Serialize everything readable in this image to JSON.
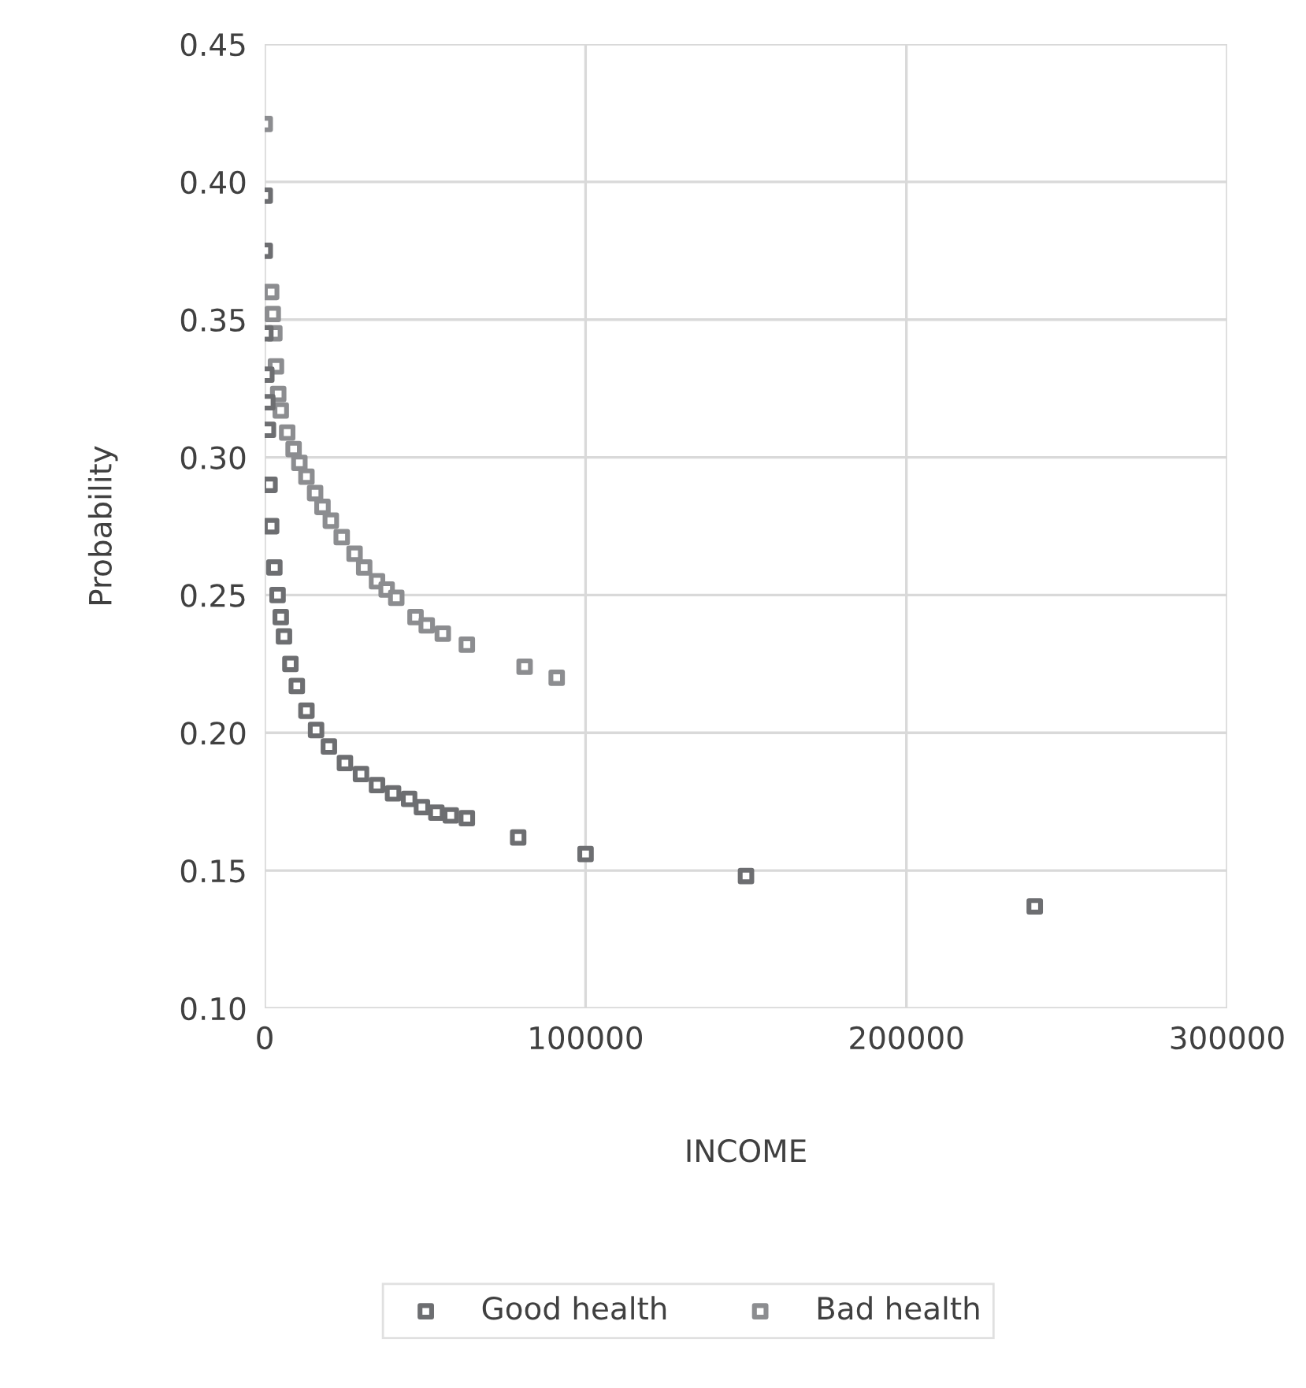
{
  "chart_data": {
    "type": "scatter",
    "xlabel": "INCOME",
    "ylabel": "Probability",
    "xlim": [
      0,
      300000
    ],
    "xticks": [
      0,
      100000,
      200000,
      300000
    ],
    "ylim": [
      0.1,
      0.45
    ],
    "yticks": [
      {
        "value": 0.1,
        "label": "0.10"
      },
      {
        "value": 0.15,
        "label": "0.15"
      },
      {
        "value": 0.2,
        "label": "0.20"
      },
      {
        "value": 0.25,
        "label": "0.25"
      },
      {
        "value": 0.3,
        "label": "0.30"
      },
      {
        "value": 0.35,
        "label": "0.35"
      },
      {
        "value": 0.4,
        "label": "0.40"
      },
      {
        "value": 0.45,
        "label": "0.45"
      }
    ],
    "grid": true,
    "legend": "bottom",
    "marker": "square",
    "series": [
      {
        "name": "Good health",
        "color": "#6d6e71",
        "x": [
          0,
          0,
          200,
          500,
          800,
          1000,
          1500,
          2000,
          3000,
          4000,
          5000,
          6000,
          8000,
          10000,
          13000,
          16000,
          20000,
          25000,
          30000,
          35000,
          40000,
          45000,
          49000,
          53500,
          58000,
          63000,
          79000,
          100000,
          150000,
          240000
        ],
        "values": [
          0.395,
          0.375,
          0.345,
          0.33,
          0.32,
          0.31,
          0.29,
          0.275,
          0.26,
          0.25,
          0.242,
          0.235,
          0.225,
          0.217,
          0.208,
          0.201,
          0.195,
          0.189,
          0.185,
          0.181,
          0.178,
          0.176,
          0.173,
          0.171,
          0.17,
          0.169,
          0.162,
          0.156,
          0.148,
          0.137
        ]
      },
      {
        "name": "Bad health",
        "color": "#8c8d90",
        "x": [
          0,
          2000,
          2500,
          3000,
          3500,
          4200,
          5000,
          7000,
          9000,
          10800,
          13000,
          15700,
          18000,
          20600,
          24000,
          28000,
          31000,
          35000,
          38000,
          41000,
          47000,
          50500,
          55500,
          63000,
          81000,
          91000
        ],
        "values": [
          0.421,
          0.36,
          0.352,
          0.345,
          0.333,
          0.323,
          0.317,
          0.309,
          0.303,
          0.298,
          0.293,
          0.287,
          0.282,
          0.277,
          0.271,
          0.265,
          0.26,
          0.255,
          0.252,
          0.249,
          0.242,
          0.239,
          0.236,
          0.232,
          0.224,
          0.22
        ]
      }
    ]
  }
}
